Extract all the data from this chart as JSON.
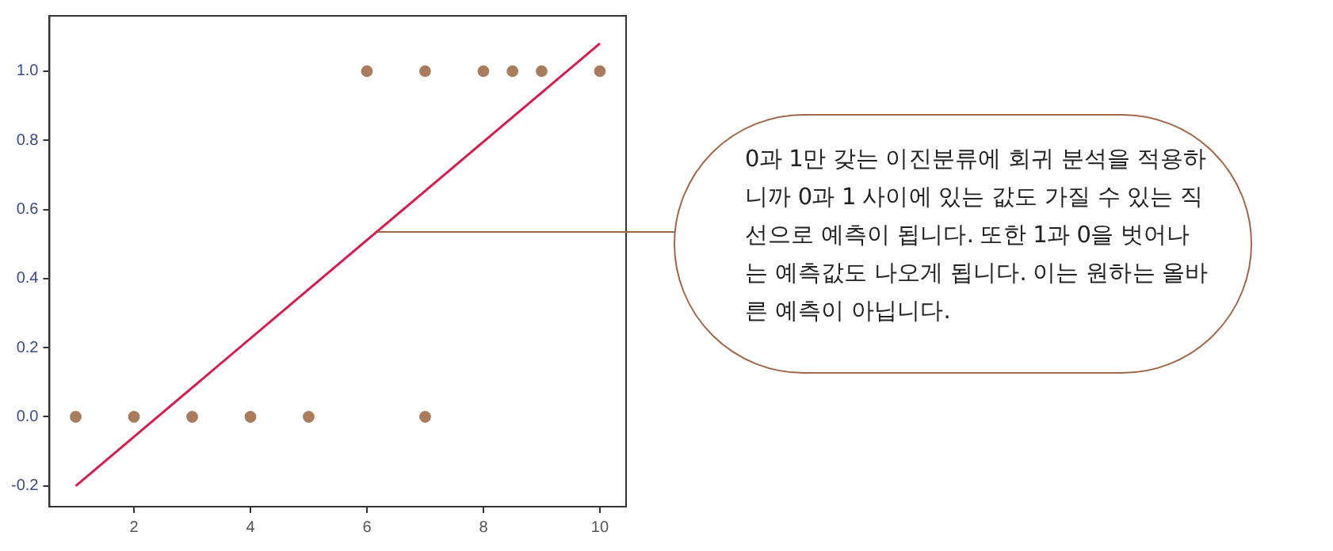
{
  "chart_data": {
    "type": "scatter",
    "series": [
      {
        "type": "scatter",
        "color": "#a97c5e",
        "x": [
          1,
          2,
          3,
          4,
          5,
          6,
          7,
          7,
          8,
          8.5,
          9,
          10
        ],
        "values": [
          0,
          0,
          0,
          0,
          0,
          1,
          1,
          0,
          1,
          1,
          1,
          1
        ]
      },
      {
        "type": "line",
        "color": "#d81b4f",
        "marker": "none",
        "x": [
          1,
          10
        ],
        "values": [
          -0.2,
          1.08
        ]
      }
    ],
    "xlim": [
      0.55,
      10.45
    ],
    "xticks": [
      2,
      4,
      6,
      8,
      10
    ],
    "ylim": [
      -0.26,
      1.16
    ],
    "yticks": [
      -0.2,
      {
        "value": 0,
        "label": "0.0"
      },
      0.2,
      0.4,
      0.6,
      0.8,
      {
        "value": 1,
        "label": "1.0"
      }
    ],
    "grid": false,
    "legend": false,
    "marker": "circle",
    "annotations": [
      "0과 1만 갖는 이진분류에 회귀 분석을 적용하니까 0과 1 사이에 있는 값도 가질 수 있는 직선으로 예측이 됩니다. 또한 1과 0을 벗어나는 예측값도 나오게 됩니다. 이는 원하는 올바른 예측이 아닙니다."
    ]
  }
}
